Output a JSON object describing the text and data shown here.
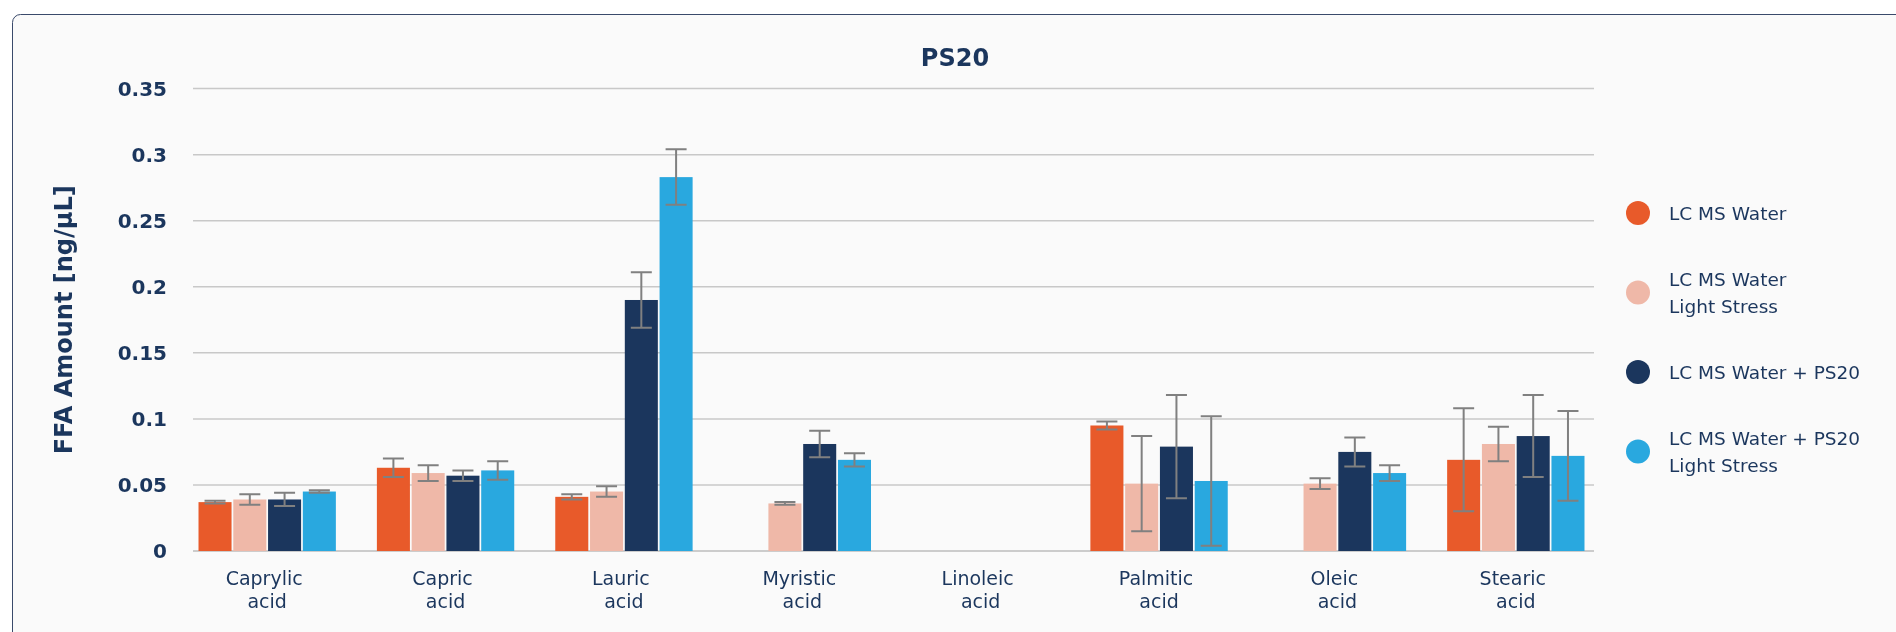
{
  "chart_data": {
    "type": "bar",
    "title": "PS20",
    "ylabel": "FFA Amount [ng/µL]",
    "categories": [
      "Caprylic acid",
      "Capric acid",
      "Lauric acid",
      "Myristic acid",
      "Linoleic acid",
      "Palmitic acid",
      "Oleic acid",
      "Stearic acid"
    ],
    "series": [
      {
        "name": "LC MS Water",
        "color": "#e85a2a",
        "values": [
          0.037,
          0.063,
          0.041,
          null,
          null,
          0.095,
          null,
          0.069
        ],
        "errors": [
          0.001,
          0.007,
          0.002,
          null,
          null,
          0.003,
          null,
          0.039
        ]
      },
      {
        "name": "LC MS Water\nLight Stress",
        "color": "#efb8a8",
        "values": [
          0.039,
          0.059,
          0.045,
          0.036,
          null,
          0.051,
          0.051,
          0.081
        ],
        "errors": [
          0.004,
          0.006,
          0.004,
          0.001,
          null,
          0.036,
          0.004,
          0.013
        ]
      },
      {
        "name": "LC MS Water + PS20",
        "color": "#1b365d",
        "values": [
          0.039,
          0.057,
          0.19,
          0.081,
          null,
          0.079,
          0.075,
          0.087
        ],
        "errors": [
          0.005,
          0.004,
          0.021,
          0.01,
          null,
          0.039,
          0.011,
          0.031
        ]
      },
      {
        "name": "LC MS Water + PS20\nLight Stress",
        "color": "#29a8df",
        "values": [
          0.045,
          0.061,
          0.283,
          0.069,
          null,
          0.053,
          0.059,
          0.072
        ],
        "errors": [
          0.001,
          0.007,
          0.021,
          0.005,
          null,
          0.049,
          0.006,
          0.034
        ]
      }
    ],
    "ylim": [
      0,
      0.35
    ],
    "yticks": [
      0,
      0.05,
      0.1,
      0.15,
      0.2,
      0.25,
      0.3,
      0.35
    ],
    "grid": "y",
    "legend": "right"
  }
}
